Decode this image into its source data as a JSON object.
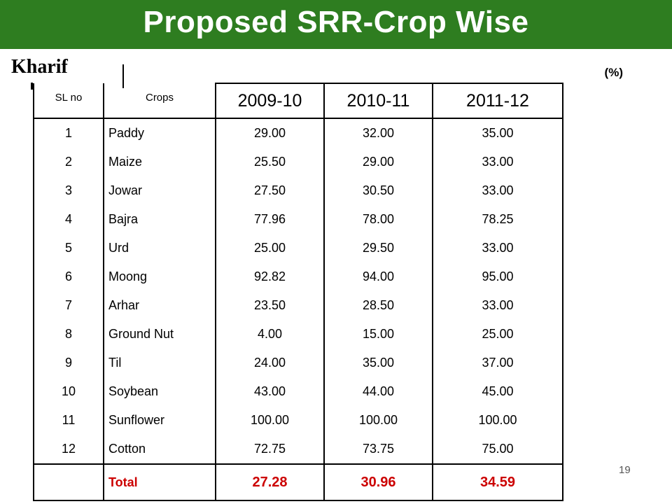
{
  "title": "Proposed SRR-Crop Wise",
  "section": "Kharif",
  "unit": "(%)",
  "page_number": "19",
  "colors": {
    "title_bar": "#2e7d20",
    "title_text": "#ffffff",
    "total_row": "#cc0000"
  },
  "table": {
    "headers": [
      "SL no",
      "Crops",
      "2009-10",
      "2010-11",
      "2011-12"
    ],
    "rows": [
      [
        "1",
        "Paddy",
        "29.00",
        "32.00",
        "35.00"
      ],
      [
        "2",
        "Maize",
        "25.50",
        "29.00",
        "33.00"
      ],
      [
        "3",
        "Jowar",
        "27.50",
        "30.50",
        "33.00"
      ],
      [
        "4",
        "Bajra",
        "77.96",
        "78.00",
        "78.25"
      ],
      [
        "5",
        "Urd",
        "25.00",
        "29.50",
        "33.00"
      ],
      [
        "6",
        "Moong",
        "92.82",
        "94.00",
        "95.00"
      ],
      [
        "7",
        "Arhar",
        "23.50",
        "28.50",
        "33.00"
      ],
      [
        "8",
        "Ground Nut",
        "4.00",
        "15.00",
        "25.00"
      ],
      [
        "9",
        "Til",
        "24.00",
        "35.00",
        "37.00"
      ],
      [
        "10",
        "Soybean",
        "43.00",
        "44.00",
        "45.00"
      ],
      [
        "11",
        "Sunflower",
        "100.00",
        "100.00",
        "100.00"
      ],
      [
        "12",
        "Cotton",
        "72.75",
        "73.75",
        "75.00"
      ]
    ],
    "total": [
      "",
      "Total",
      "27.28",
      "30.96",
      "34.59"
    ]
  }
}
